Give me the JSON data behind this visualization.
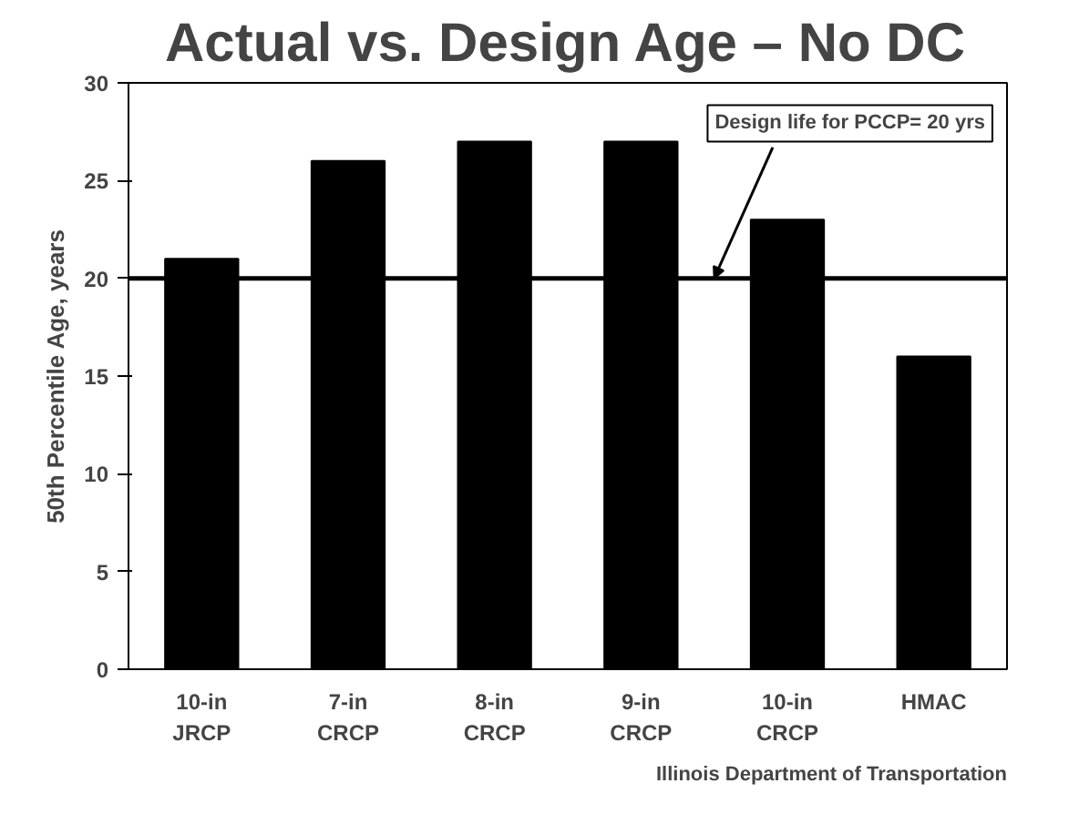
{
  "chart_data": {
    "type": "bar",
    "title": "Actual vs. Design Age – No DC",
    "ylabel": "50th Percentile Age, years",
    "categories": [
      "10-in\nJRCP",
      "7-in\nCRCP",
      "8-in\nCRCP",
      "9-in\nCRCP",
      "10-in\nCRCP",
      "HMAC"
    ],
    "values": [
      21,
      26,
      27,
      27,
      23,
      16
    ],
    "color": "#000000",
    "ylim": [
      0,
      30
    ],
    "yticks": [
      0,
      5,
      10,
      15,
      20,
      25,
      30
    ],
    "grid": false,
    "ref_lines": [
      {
        "axis": "y",
        "value": 20,
        "label": "Design life for PCCP= 20 yrs",
        "color": "#000000"
      }
    ],
    "annotations": [
      "Illinois Department of Transportation"
    ]
  }
}
